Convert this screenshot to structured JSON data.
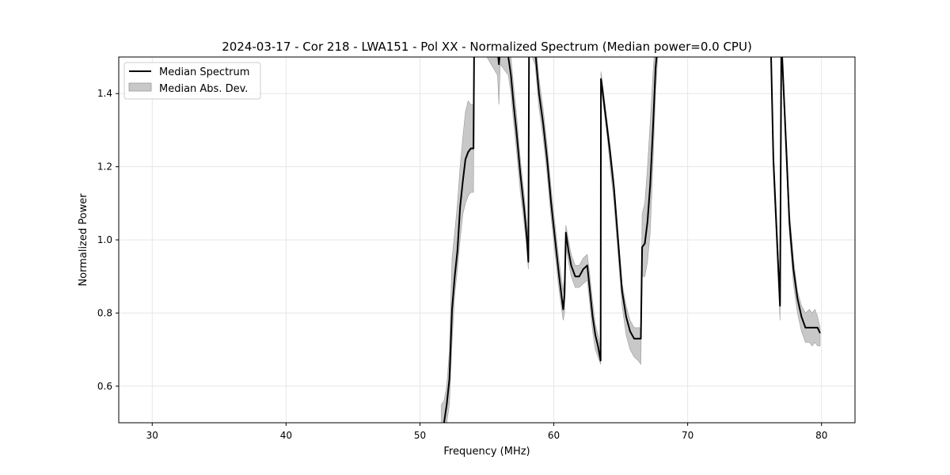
{
  "chart_data": {
    "type": "line",
    "title": "2024-03-17 - Cor 218 - LWA151 - Pol XX - Normalized Spectrum (Median power=0.0 CPU)",
    "xlabel": "Frequency (MHz)",
    "ylabel": "Normalized Power",
    "xlim": [
      27.5,
      82.5
    ],
    "ylim": [
      0.5,
      1.5
    ],
    "xticks": [
      30,
      40,
      50,
      60,
      70,
      80
    ],
    "yticks": [
      0.6,
      0.8,
      1.0,
      1.2,
      1.4
    ],
    "grid": true,
    "legend_position": "top-left",
    "colors": {
      "line": "#000000",
      "band": "#c8c8c8",
      "band_edge": "#9a9a9a",
      "grid": "#e6e6e6"
    },
    "series": [
      {
        "name": "Median Spectrum",
        "kind": "line",
        "x": [
          51.8,
          52.0,
          52.2,
          52.4,
          52.6,
          52.8,
          53.0,
          53.2,
          53.4,
          53.6,
          53.8,
          54.0,
          54.05,
          54.3,
          55.0,
          55.8,
          55.9,
          56.0,
          56.6,
          56.8,
          57.0,
          57.2,
          57.5,
          57.8,
          58.0,
          58.1,
          58.15,
          58.3,
          58.6,
          58.9,
          59.2,
          59.5,
          59.8,
          60.1,
          60.4,
          60.7,
          60.8,
          60.9,
          61.1,
          61.3,
          61.6,
          61.9,
          62.2,
          62.5,
          62.7,
          62.9,
          63.1,
          63.3,
          63.5,
          63.52,
          63.6,
          63.8,
          64.0,
          64.2,
          64.5,
          64.8,
          65.1,
          65.4,
          65.7,
          66.0,
          66.3,
          66.5,
          66.6,
          66.8,
          67.0,
          67.2,
          67.4,
          67.6,
          67.8,
          76.2,
          76.4,
          76.8,
          76.9,
          77.0,
          77.4,
          77.6,
          77.9,
          78.2,
          78.5,
          78.8,
          79.1,
          79.3,
          79.5,
          79.7,
          79.9
        ],
        "y": [
          0.5,
          0.55,
          0.62,
          0.81,
          0.9,
          0.97,
          1.09,
          1.16,
          1.22,
          1.24,
          1.25,
          1.25,
          1.52,
          1.56,
          1.55,
          1.52,
          1.48,
          1.52,
          1.5,
          1.45,
          1.37,
          1.3,
          1.18,
          1.08,
          1.0,
          0.94,
          1.55,
          1.55,
          1.52,
          1.4,
          1.32,
          1.22,
          1.1,
          1.0,
          0.9,
          0.81,
          0.85,
          1.02,
          0.97,
          0.93,
          0.9,
          0.9,
          0.92,
          0.93,
          0.86,
          0.79,
          0.74,
          0.71,
          0.67,
          1.44,
          1.42,
          1.36,
          1.3,
          1.24,
          1.14,
          1.0,
          0.86,
          0.79,
          0.75,
          0.73,
          0.73,
          0.73,
          0.98,
          0.99,
          1.05,
          1.15,
          1.3,
          1.47,
          1.55,
          1.55,
          1.22,
          0.9,
          0.82,
          1.55,
          1.22,
          1.05,
          0.92,
          0.84,
          0.79,
          0.76,
          0.76,
          0.76,
          0.76,
          0.76,
          0.745
        ]
      },
      {
        "name": "Median Abs. Dev.",
        "kind": "band",
        "x": [
          51.6,
          51.8,
          52.0,
          52.2,
          52.4,
          52.6,
          52.8,
          53.0,
          53.2,
          53.4,
          53.6,
          53.8,
          54.0,
          54.05,
          55.0,
          55.8,
          55.9,
          56.0,
          56.6,
          56.8,
          57.0,
          57.2,
          57.5,
          57.8,
          58.0,
          58.1,
          58.15,
          58.6,
          58.9,
          59.2,
          59.5,
          59.8,
          60.1,
          60.4,
          60.7,
          60.8,
          60.9,
          61.1,
          61.3,
          61.6,
          61.9,
          62.2,
          62.5,
          62.7,
          62.9,
          63.1,
          63.3,
          63.5,
          63.52,
          63.6,
          63.8,
          64.0,
          64.2,
          64.5,
          64.8,
          65.1,
          65.4,
          65.7,
          66.0,
          66.3,
          66.5,
          66.6,
          66.8,
          67.0,
          67.2,
          67.4,
          67.6,
          67.8,
          76.2,
          76.4,
          76.8,
          76.9,
          77.0,
          77.4,
          77.6,
          77.9,
          78.2,
          78.5,
          78.8,
          79.1,
          79.3,
          79.5,
          79.7,
          79.9
        ],
        "upper": [
          0.55,
          0.56,
          0.6,
          0.7,
          0.95,
          1.02,
          1.1,
          1.2,
          1.28,
          1.35,
          1.38,
          1.37,
          1.37,
          1.56,
          1.56,
          1.55,
          1.52,
          1.55,
          1.54,
          1.5,
          1.42,
          1.35,
          1.22,
          1.12,
          1.04,
          0.99,
          1.56,
          1.56,
          1.44,
          1.36,
          1.26,
          1.14,
          1.04,
          0.94,
          0.86,
          0.9,
          1.04,
          1.0,
          0.96,
          0.93,
          0.93,
          0.95,
          0.96,
          0.9,
          0.83,
          0.77,
          0.74,
          0.7,
          1.46,
          1.44,
          1.38,
          1.32,
          1.26,
          1.16,
          1.02,
          0.88,
          0.82,
          0.78,
          0.76,
          0.76,
          0.76,
          1.07,
          1.1,
          1.2,
          1.32,
          1.45,
          1.56,
          1.56,
          1.56,
          1.25,
          0.93,
          0.85,
          1.56,
          1.25,
          1.08,
          0.95,
          0.86,
          0.82,
          0.8,
          0.81,
          0.8,
          0.81,
          0.79,
          0.76
        ],
        "lower": [
          0.5,
          0.5,
          0.5,
          0.55,
          0.72,
          0.85,
          0.92,
          1.0,
          1.07,
          1.1,
          1.12,
          1.13,
          1.13,
          1.5,
          1.5,
          1.45,
          1.37,
          1.48,
          1.45,
          1.4,
          1.32,
          1.25,
          1.13,
          1.04,
          0.97,
          0.92,
          1.52,
          1.48,
          1.36,
          1.28,
          1.18,
          1.06,
          0.96,
          0.86,
          0.78,
          0.8,
          0.98,
          0.94,
          0.9,
          0.87,
          0.87,
          0.88,
          0.89,
          0.82,
          0.75,
          0.7,
          0.68,
          0.66,
          1.42,
          1.4,
          1.34,
          1.28,
          1.2,
          1.1,
          0.96,
          0.82,
          0.74,
          0.7,
          0.68,
          0.67,
          0.66,
          0.9,
          0.9,
          0.94,
          1.02,
          1.2,
          1.4,
          1.52,
          1.52,
          1.18,
          0.86,
          0.78,
          1.52,
          1.18,
          1.02,
          0.88,
          0.8,
          0.75,
          0.72,
          0.72,
          0.71,
          0.72,
          0.71,
          0.71
        ]
      }
    ]
  }
}
